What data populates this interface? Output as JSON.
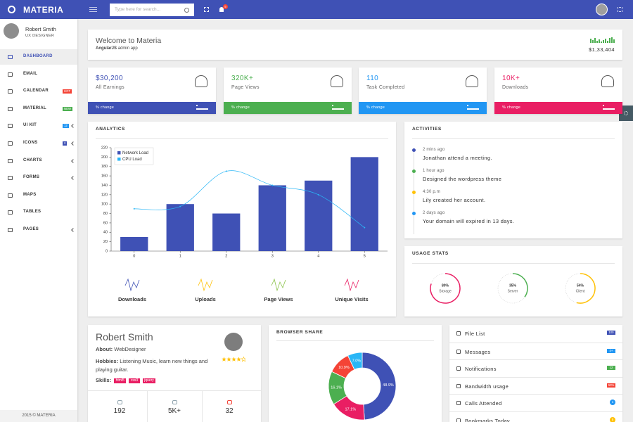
{
  "header": {
    "brand": "MATERIA",
    "search_placeholder": "Type here for search...",
    "notification_badge": "5"
  },
  "sidebar": {
    "user_name": "Robert Smith",
    "user_role": "UX DESIGNER",
    "menu": [
      {
        "label": "DASHBOARD",
        "active": true
      },
      {
        "label": "EMAIL"
      },
      {
        "label": "CALENDAR",
        "badge": "HOT",
        "badge_color": "#f44336"
      },
      {
        "label": "MATERIAL",
        "badge": "NEW",
        "badge_color": "#4caf50"
      },
      {
        "label": "UI KIT",
        "badge": "12",
        "badge_color": "#2196f3",
        "submenu": true
      },
      {
        "label": "ICONS",
        "badge": "2",
        "badge_color": "#3f51b5",
        "submenu": true
      },
      {
        "label": "CHARTS",
        "submenu": true
      },
      {
        "label": "FORMS",
        "submenu": true
      },
      {
        "label": "MAPS"
      },
      {
        "label": "TABLES"
      },
      {
        "label": "PAGES",
        "submenu": true
      }
    ],
    "footer": "2015 © MATERIA"
  },
  "welcome": {
    "title": "Welcome to Materia",
    "subtitle_bold": "AngularJS",
    "subtitle": "admin app",
    "amount": "$1,33,404"
  },
  "stats": [
    {
      "value": "$30,200",
      "label": "All Earnings",
      "change": "% change",
      "color": "#3f51b5"
    },
    {
      "value": "320K+",
      "label": "Page Views",
      "change": "% change",
      "color": "#4caf50"
    },
    {
      "value": "110",
      "label": "Task Completed",
      "change": "% change",
      "color": "#2196f3"
    },
    {
      "value": "10K+",
      "label": "Downloads",
      "change": "% change",
      "color": "#e91e63"
    }
  ],
  "analytics": {
    "title": "ANALYTICS",
    "chart": {
      "type": "bar",
      "x": [
        0,
        1,
        2,
        3,
        4,
        5
      ],
      "xlim": [
        -0.5,
        5.5
      ],
      "xticks": [
        0,
        1,
        2,
        3,
        4,
        5
      ],
      "ylim": [
        0,
        220
      ],
      "yticks": [
        0,
        20,
        40,
        60,
        80,
        100,
        120,
        140,
        160,
        180,
        200,
        220
      ],
      "series": [
        {
          "name": "Network Load",
          "type": "bar",
          "color": "#3f51b5",
          "values": [
            30,
            100,
            80,
            140,
            150,
            200
          ]
        },
        {
          "name": "CPU Load",
          "type": "line",
          "color": "#29b6f6",
          "values": [
            90,
            95,
            170,
            140,
            120,
            50
          ]
        }
      ]
    },
    "sparklines": [
      {
        "label": "Downloads",
        "color": "#3f51b5"
      },
      {
        "label": "Uploads",
        "color": "#ffc107"
      },
      {
        "label": "Page Views",
        "color": "#8bc34a"
      },
      {
        "label": "Unique Visits",
        "color": "#e91e63"
      }
    ]
  },
  "activities": {
    "title": "ACTIVITIES",
    "items": [
      {
        "time": "2 mins ago",
        "text": "Jonathan attend a meeting.",
        "color": "#3f51b5"
      },
      {
        "time": "1 hour ago",
        "text": "Designed the wordpress theme",
        "color": "#4caf50"
      },
      {
        "time": "4:30 p.m",
        "text": "Lily created her account.",
        "color": "#ffc107"
      },
      {
        "time": "2 days ago",
        "text": "Your domain will expired in 13 days.",
        "color": "#2196f3"
      }
    ]
  },
  "usage": {
    "title": "USAGE STATS",
    "items": [
      {
        "value": 80,
        "value_label": "80%",
        "label": "Storage",
        "color": "#e91e63"
      },
      {
        "value": 35,
        "value_label": "35%",
        "label": "Server",
        "color": "#4caf50"
      },
      {
        "value": 54,
        "value_label": "54%",
        "label": "Client",
        "color": "#ffc107"
      }
    ]
  },
  "profile": {
    "name": "Robert Smith",
    "about_label": "About:",
    "about": "WebDesigner",
    "hobbies_label": "Hobbies:",
    "hobbies": "Listening Music, learn new things and playing guitar.",
    "skills_label": "Skills:",
    "skills": [
      "html5",
      "css3",
      "jquery"
    ],
    "stats": [
      {
        "value": "192",
        "color": "#90a4ae"
      },
      {
        "value": "5K+",
        "color": "#90a4ae"
      },
      {
        "value": "32",
        "color": "#f44336"
      }
    ]
  },
  "browser_share": {
    "title": "BROWSER SHARE",
    "chart": {
      "type": "pie",
      "values": [
        48.9,
        17.1,
        16.1,
        10.9,
        7
      ],
      "value_labels": [
        "48.9%",
        "17.1%",
        "16.1%",
        "10.9%",
        "7.0%"
      ],
      "colors": [
        "#3f51b5",
        "#e91e63",
        "#4caf50",
        "#f44336",
        "#29b6f6"
      ]
    }
  },
  "links": [
    {
      "label": "File List",
      "badge": "100",
      "badge_color": "#3f51b5"
    },
    {
      "label": "Messages",
      "badge": "4+",
      "badge_color": "#2196f3"
    },
    {
      "label": "Notifications",
      "badge": "12",
      "badge_color": "#4caf50"
    },
    {
      "label": "Bandwidth usage",
      "badge": "50%",
      "badge_color": "#f44336"
    },
    {
      "label": "Calls Attended",
      "badge": "1",
      "badge_color": "#2196f3",
      "badge_shape": "circle"
    },
    {
      "label": "Bookmarks Today",
      "badge": "5",
      "badge_color": "#ffc107",
      "badge_shape": "circle"
    }
  ]
}
